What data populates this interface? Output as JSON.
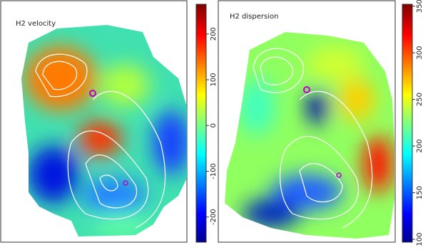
{
  "chart_data": [
    {
      "type": "heatmap",
      "title": "H2 velocity",
      "colormap": "jet",
      "ylim": [
        -255,
        265
      ],
      "yticks": [
        -200,
        -100,
        0,
        100,
        200
      ]
    },
    {
      "type": "heatmap",
      "title": "H2 dispersion",
      "colormap": "jet",
      "ylim": [
        97,
        352
      ],
      "yticks": [
        100,
        150,
        200,
        250,
        300,
        350
      ]
    }
  ]
}
